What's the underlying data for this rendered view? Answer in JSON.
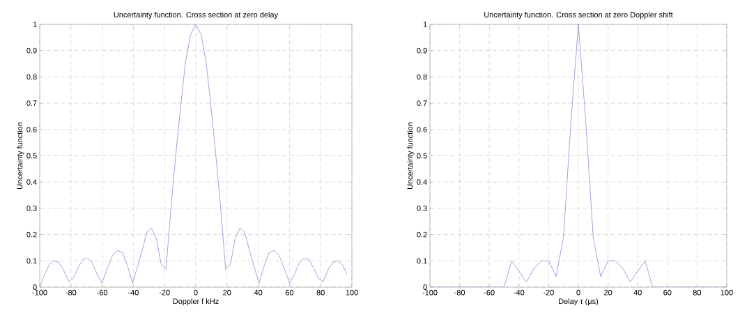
{
  "chart_data": [
    {
      "type": "line",
      "title": "Uncertainty function. Cross section at zero delay",
      "xlabel": "Doppler f kHz",
      "ylabel": "Uncertainty function",
      "x": [
        -100,
        -97.5,
        -93.9,
        -91,
        -88,
        -85,
        -81.5,
        -78.6,
        -75.7,
        -72.5,
        -69.4,
        -66.5,
        -63.3,
        -60.1,
        -56.8,
        -53.4,
        -50,
        -46.9,
        -44,
        -40.5,
        -37.4,
        -34.2,
        -31.3,
        -28.4,
        -25.2,
        -22.3,
        -19.1,
        -15.6,
        -12.4,
        -9.2,
        -6.6,
        -3.4,
        0,
        3.4,
        6.6,
        9.2,
        12.4,
        15.6,
        19.1,
        22.3,
        25.2,
        28.4,
        31.3,
        34.2,
        37.4,
        40.5,
        44,
        46.9,
        50,
        53.4,
        56.8,
        60.1,
        63.3,
        66.5,
        69.4,
        72.5,
        75.7,
        78.6,
        81.5,
        85,
        88,
        91,
        93.9,
        96.8
      ],
      "series": [
        {
          "color": "#8c8cd8",
          "values": [
            0,
            0.04,
            0.086,
            0.1,
            0.095,
            0.07,
            0.02,
            0.033,
            0.07,
            0.105,
            0.11,
            0.095,
            0.05,
            0.015,
            0.07,
            0.12,
            0.14,
            0.13,
            0.086,
            0.015,
            0.077,
            0.144,
            0.21,
            0.225,
            0.184,
            0.09,
            0.068,
            0.325,
            0.53,
            0.716,
            0.858,
            0.96,
            1.0,
            0.96,
            0.858,
            0.716,
            0.53,
            0.325,
            0.068,
            0.09,
            0.184,
            0.225,
            0.21,
            0.144,
            0.077,
            0.015,
            0.086,
            0.13,
            0.14,
            0.12,
            0.07,
            0.015,
            0.05,
            0.095,
            0.11,
            0.105,
            0.07,
            0.033,
            0.02,
            0.07,
            0.095,
            0.1,
            0.086,
            0.048
          ]
        }
      ],
      "xlim": [
        -100,
        100
      ],
      "ylim": [
        0,
        1
      ],
      "xticks": [
        -100,
        -80,
        -60,
        -40,
        -20,
        0,
        20,
        40,
        60,
        80,
        100
      ],
      "yticks": [
        0,
        0.1,
        0.2,
        0.3,
        0.4,
        0.5,
        0.6,
        0.7,
        0.8,
        0.9,
        1
      ],
      "grid": true,
      "marker": "none",
      "line_style": "solid"
    },
    {
      "type": "line",
      "title": "Uncertainty function. Cross section at zero Doppler shift",
      "xlabel": "Delay  τ  (μs)",
      "ylabel": "Uncertainty function",
      "x": [
        -100,
        -50,
        -45,
        -35,
        -30,
        -25,
        -20,
        -15,
        -10,
        -5,
        0,
        5,
        10,
        15,
        20,
        25,
        30,
        35,
        45,
        50,
        100
      ],
      "series": [
        {
          "color": "#8c8cd8",
          "values": [
            0,
            0,
            0.1,
            0.02,
            0.07,
            0.1,
            0.1,
            0.04,
            0.19,
            0.63,
            1.0,
            0.63,
            0.19,
            0.04,
            0.1,
            0.1,
            0.07,
            0.02,
            0.1,
            0,
            0
          ]
        }
      ],
      "xlim": [
        -100,
        100
      ],
      "ylim": [
        0,
        1
      ],
      "xticks": [
        -100,
        -80,
        -60,
        -40,
        -20,
        0,
        20,
        40,
        60,
        80,
        100
      ],
      "yticks": [
        0,
        0.1,
        0.2,
        0.3,
        0.4,
        0.5,
        0.6,
        0.7,
        0.8,
        0.9,
        1
      ],
      "grid": true,
      "marker": "none",
      "line_style": "solid"
    }
  ]
}
